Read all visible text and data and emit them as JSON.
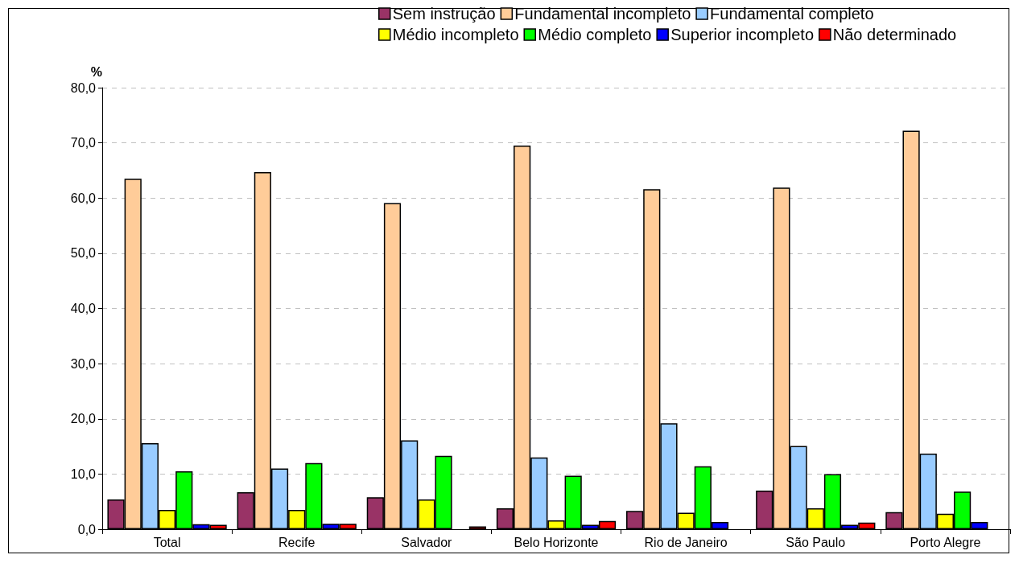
{
  "chart_data": {
    "type": "bar",
    "ylabel": "%",
    "categories": [
      "Total",
      "Recife",
      "Salvador",
      "Belo Horizonte",
      "Rio de Janeiro",
      "São Paulo",
      "Porto Alegre"
    ],
    "series": [
      {
        "name": "Sem instrução",
        "color": "#993366",
        "values": [
          5.4,
          6.7,
          5.8,
          3.8,
          3.3,
          7.0,
          3.1
        ]
      },
      {
        "name": "Fundamental incompleto",
        "color": "#ffcc99",
        "values": [
          63.5,
          64.7,
          59.1,
          69.5,
          61.6,
          61.9,
          72.2
        ]
      },
      {
        "name": "Fundamental completo",
        "color": "#99ccff",
        "values": [
          15.6,
          11.0,
          16.1,
          13.0,
          19.2,
          15.1,
          13.7
        ]
      },
      {
        "name": "Médio incompleto",
        "color": "#ffff00",
        "values": [
          3.5,
          3.5,
          5.4,
          1.6,
          3.0,
          3.8,
          2.8
        ]
      },
      {
        "name": "Médio completo",
        "color": "#00ff00",
        "values": [
          10.5,
          12.0,
          13.3,
          9.7,
          11.4,
          10.0,
          6.8
        ]
      },
      {
        "name": "Superior incompleto",
        "color": "#0000ff",
        "values": [
          0.9,
          1.0,
          null,
          0.8,
          1.3,
          0.8,
          1.3
        ]
      },
      {
        "name": "Não determinado",
        "color": "#ff0000",
        "values": [
          0.8,
          1.0,
          0.5,
          1.5,
          null,
          1.2,
          null
        ]
      }
    ],
    "ylim": [
      0,
      80
    ],
    "yticks": [
      {
        "value": 0,
        "label": "0,0"
      },
      {
        "value": 10,
        "label": "10,0"
      },
      {
        "value": 20,
        "label": "20,0"
      },
      {
        "value": 30,
        "label": "30,0"
      },
      {
        "value": 40,
        "label": "40,0"
      },
      {
        "value": 50,
        "label": "50,0"
      },
      {
        "value": 60,
        "label": "60,0"
      },
      {
        "value": 70,
        "label": "70,0"
      },
      {
        "value": 80,
        "label": "80,0"
      }
    ],
    "grid": "y",
    "legend": "top right"
  }
}
